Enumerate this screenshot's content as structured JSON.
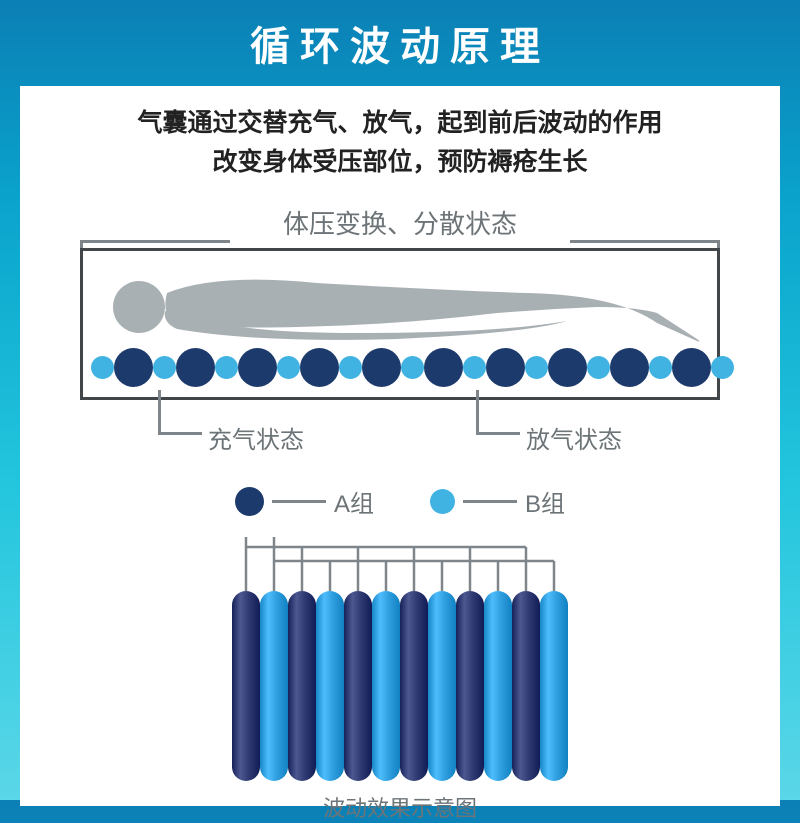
{
  "header": {
    "title": "循环波动原理",
    "title_fontsize": 40,
    "title_color": "#ffffff"
  },
  "panel": {
    "desc_line1": "气囊通过交替充气、放气，起到前后波动的作用",
    "desc_line2": "改变身体受压部位，预防褥疮生长",
    "desc_fontsize": 25,
    "desc_color": "#222222"
  },
  "colors": {
    "dark": "#1d3a6d",
    "light": "#40b3e3",
    "outline": "#434649",
    "text_muted": "#6d7478",
    "connector": "#7e868b",
    "person": "#a9b0b4",
    "tube_dark": "#2f3a73",
    "tube_light": "#2f9fe0"
  },
  "diagram1": {
    "top_label": "体压变换、分散状态",
    "top_label_fontsize": 26,
    "circle_large_d": 39,
    "circle_small_d": 23,
    "pattern": [
      "S",
      "L",
      "S",
      "L",
      "S",
      "L",
      "S",
      "L",
      "S",
      "L",
      "S",
      "L",
      "S",
      "L",
      "S",
      "L",
      "S",
      "L",
      "S",
      "L",
      "S"
    ],
    "callout_left": "充气状态",
    "callout_right": "放气状态",
    "callout_fontsize": 24
  },
  "legend": {
    "items": [
      {
        "color_key": "dark",
        "label": "A组",
        "dot_d": 29
      },
      {
        "color_key": "light",
        "label": "B组",
        "dot_d": 25
      }
    ],
    "fontsize": 24
  },
  "tubes": {
    "count": 12,
    "colors_order": [
      "tube_dark",
      "tube_light",
      "tube_dark",
      "tube_light",
      "tube_dark",
      "tube_light",
      "tube_dark",
      "tube_light",
      "tube_dark",
      "tube_light",
      "tube_dark",
      "tube_light"
    ],
    "label": "波动效果示意图",
    "label_fontsize": 22,
    "tube_width": 28,
    "tube_height": 190
  }
}
